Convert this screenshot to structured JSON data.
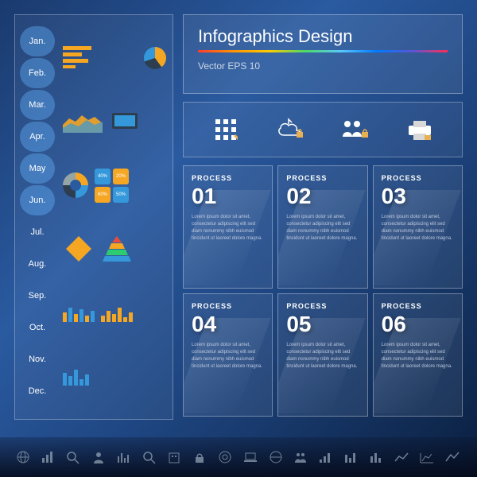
{
  "header": {
    "title": "Infographics Design",
    "subtitle": "Vector  EPS 10"
  },
  "months": [
    {
      "label": "Jan.",
      "hl": true
    },
    {
      "label": "Feb.",
      "hl": true
    },
    {
      "label": "Mar.",
      "hl": true
    },
    {
      "label": "Apr.",
      "hl": true
    },
    {
      "label": "May",
      "hl": true
    },
    {
      "label": "Jun.",
      "hl": true
    },
    {
      "label": "Jul.",
      "hl": false
    },
    {
      "label": "Aug.",
      "hl": false
    },
    {
      "label": "Sep.",
      "hl": false
    },
    {
      "label": "Oct.",
      "hl": false
    },
    {
      "label": "Nov.",
      "hl": false
    },
    {
      "label": "Dec.",
      "hl": false
    }
  ],
  "sidebar_icons": {
    "row1": {
      "bars": {
        "type": "hbar",
        "values": [
          40,
          28,
          36,
          18
        ],
        "colors": [
          "#f5a623",
          "#f5a623",
          "#f5a623",
          "#f5a623"
        ]
      },
      "pie": {
        "type": "pie",
        "slices": [
          {
            "v": 40,
            "c": "#f5a623"
          },
          {
            "v": 30,
            "c": "#2c3e50"
          },
          {
            "v": 30,
            "c": "#3498db"
          }
        ]
      }
    },
    "row2": {
      "area": {
        "type": "area",
        "colors": [
          "#f5a623",
          "#3498db"
        ],
        "points": [
          3,
          7,
          5,
          9,
          6,
          8,
          4
        ]
      },
      "device": {
        "type": "device",
        "color": "#2c3e50"
      }
    },
    "row3": {
      "donut": {
        "type": "donut",
        "slices": [
          {
            "v": 25,
            "c": "#f5a623"
          },
          {
            "v": 25,
            "c": "#3498db"
          },
          {
            "v": 25,
            "c": "#2c3e50"
          },
          {
            "v": 25,
            "c": "#95a5a6"
          }
        ]
      },
      "segments": {
        "type": "blocks",
        "items": [
          {
            "v": "40%",
            "c": "#3498db"
          },
          {
            "v": "20%",
            "c": "#f5a623"
          },
          {
            "v": "60%",
            "c": "#f5a623"
          },
          {
            "v": "50%",
            "c": "#3498db"
          }
        ]
      }
    },
    "row4": {
      "diamond": {
        "type": "diamond",
        "color": "#f5a623"
      },
      "pyramid": {
        "type": "pyramid",
        "colors": [
          "#e74c3c",
          "#f5a623",
          "#f1c40f",
          "#2ecc71",
          "#3498db"
        ]
      }
    },
    "row5": {
      "vbar": {
        "type": "vbar",
        "values": [
          12,
          18,
          10,
          16,
          8,
          14
        ],
        "colors": [
          "#f5a623",
          "#3498db",
          "#f5a623",
          "#3498db",
          "#f5a623",
          "#3498db"
        ]
      },
      "hist": {
        "type": "vbar",
        "values": [
          8,
          14,
          10,
          18,
          6,
          12,
          16
        ],
        "color": "#f5a623"
      }
    },
    "row6": {
      "cols": {
        "type": "vbar",
        "values": [
          16,
          12,
          20,
          8,
          14
        ],
        "color": "#3498db"
      }
    }
  },
  "iconbar": [
    "grid-icon",
    "cloud-lock-icon",
    "people-lock-icon",
    "printer-icon"
  ],
  "cards": [
    {
      "num": "01",
      "label": "PROCESS"
    },
    {
      "num": "02",
      "label": "PROCESS"
    },
    {
      "num": "03",
      "label": "PROCESS"
    },
    {
      "num": "04",
      "label": "PROCESS"
    },
    {
      "num": "05",
      "label": "PROCESS"
    },
    {
      "num": "06",
      "label": "PROCESS"
    }
  ],
  "card_text": "Lorem ipsum dolor sit amet, consectetur adipiscing elit sed diam nonummy nibh euismod tincidunt ut laoreet dolore magna.",
  "footer_icons": [
    "globe",
    "bars",
    "zoom",
    "person",
    "hist",
    "search",
    "building",
    "lock",
    "target",
    "laptop",
    "globe2",
    "people",
    "bars2",
    "bars3",
    "bars4",
    "line",
    "chart",
    "trend"
  ],
  "colors": {
    "bg_start": "#1a3a6e",
    "bg_end": "#0a1f3f",
    "accent_orange": "#f5a623",
    "accent_blue": "#3498db",
    "text": "#ffffff",
    "muted": "#b8c5dd",
    "panel_border": "rgba(255,255,255,0.35)"
  }
}
